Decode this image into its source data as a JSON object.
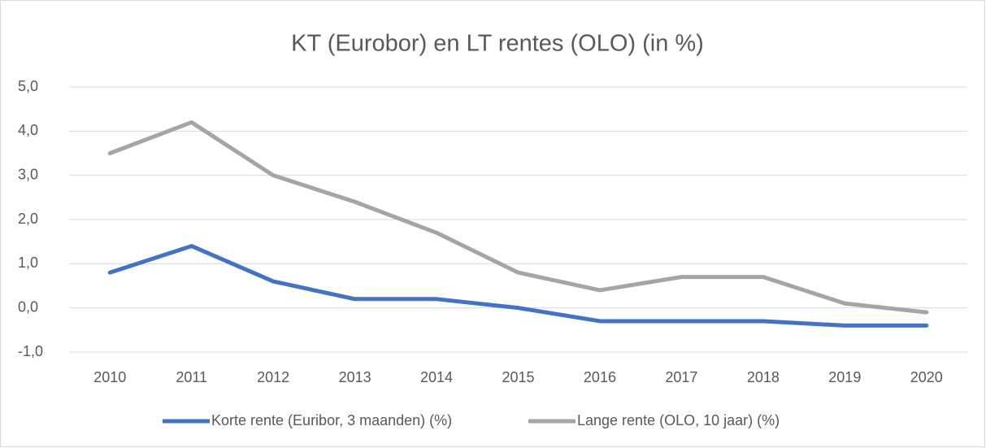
{
  "chart_data": {
    "type": "line",
    "title": "KT (Eurobor) en LT rentes (OLO) (in %)",
    "categories": [
      "2010",
      "2011",
      "2012",
      "2013",
      "2014",
      "2015",
      "2016",
      "2017",
      "2018",
      "2019",
      "2020"
    ],
    "series": [
      {
        "name": "Korte rente (Euribor, 3 maanden) (%)",
        "color": "#4472c4",
        "values": [
          0.8,
          1.4,
          0.6,
          0.2,
          0.2,
          0.0,
          -0.3,
          -0.3,
          -0.3,
          -0.4,
          -0.4
        ]
      },
      {
        "name": "Lange rente (OLO, 10 jaar) (%)",
        "color": "#a5a5a5",
        "values": [
          3.5,
          4.2,
          3.0,
          2.4,
          1.7,
          0.8,
          0.4,
          0.7,
          0.7,
          0.1,
          -0.1
        ]
      }
    ],
    "ylim": [
      -1,
      5
    ],
    "yticks": [
      {
        "value": -1,
        "label": "-1,0"
      },
      {
        "value": 0,
        "label": "0,0"
      },
      {
        "value": 1,
        "label": "1,0"
      },
      {
        "value": 2,
        "label": "2,0"
      },
      {
        "value": 3,
        "label": "3,0"
      },
      {
        "value": 4,
        "label": "4,0"
      },
      {
        "value": 5,
        "label": "5,0"
      }
    ],
    "grid": true,
    "legend": "bottom"
  }
}
